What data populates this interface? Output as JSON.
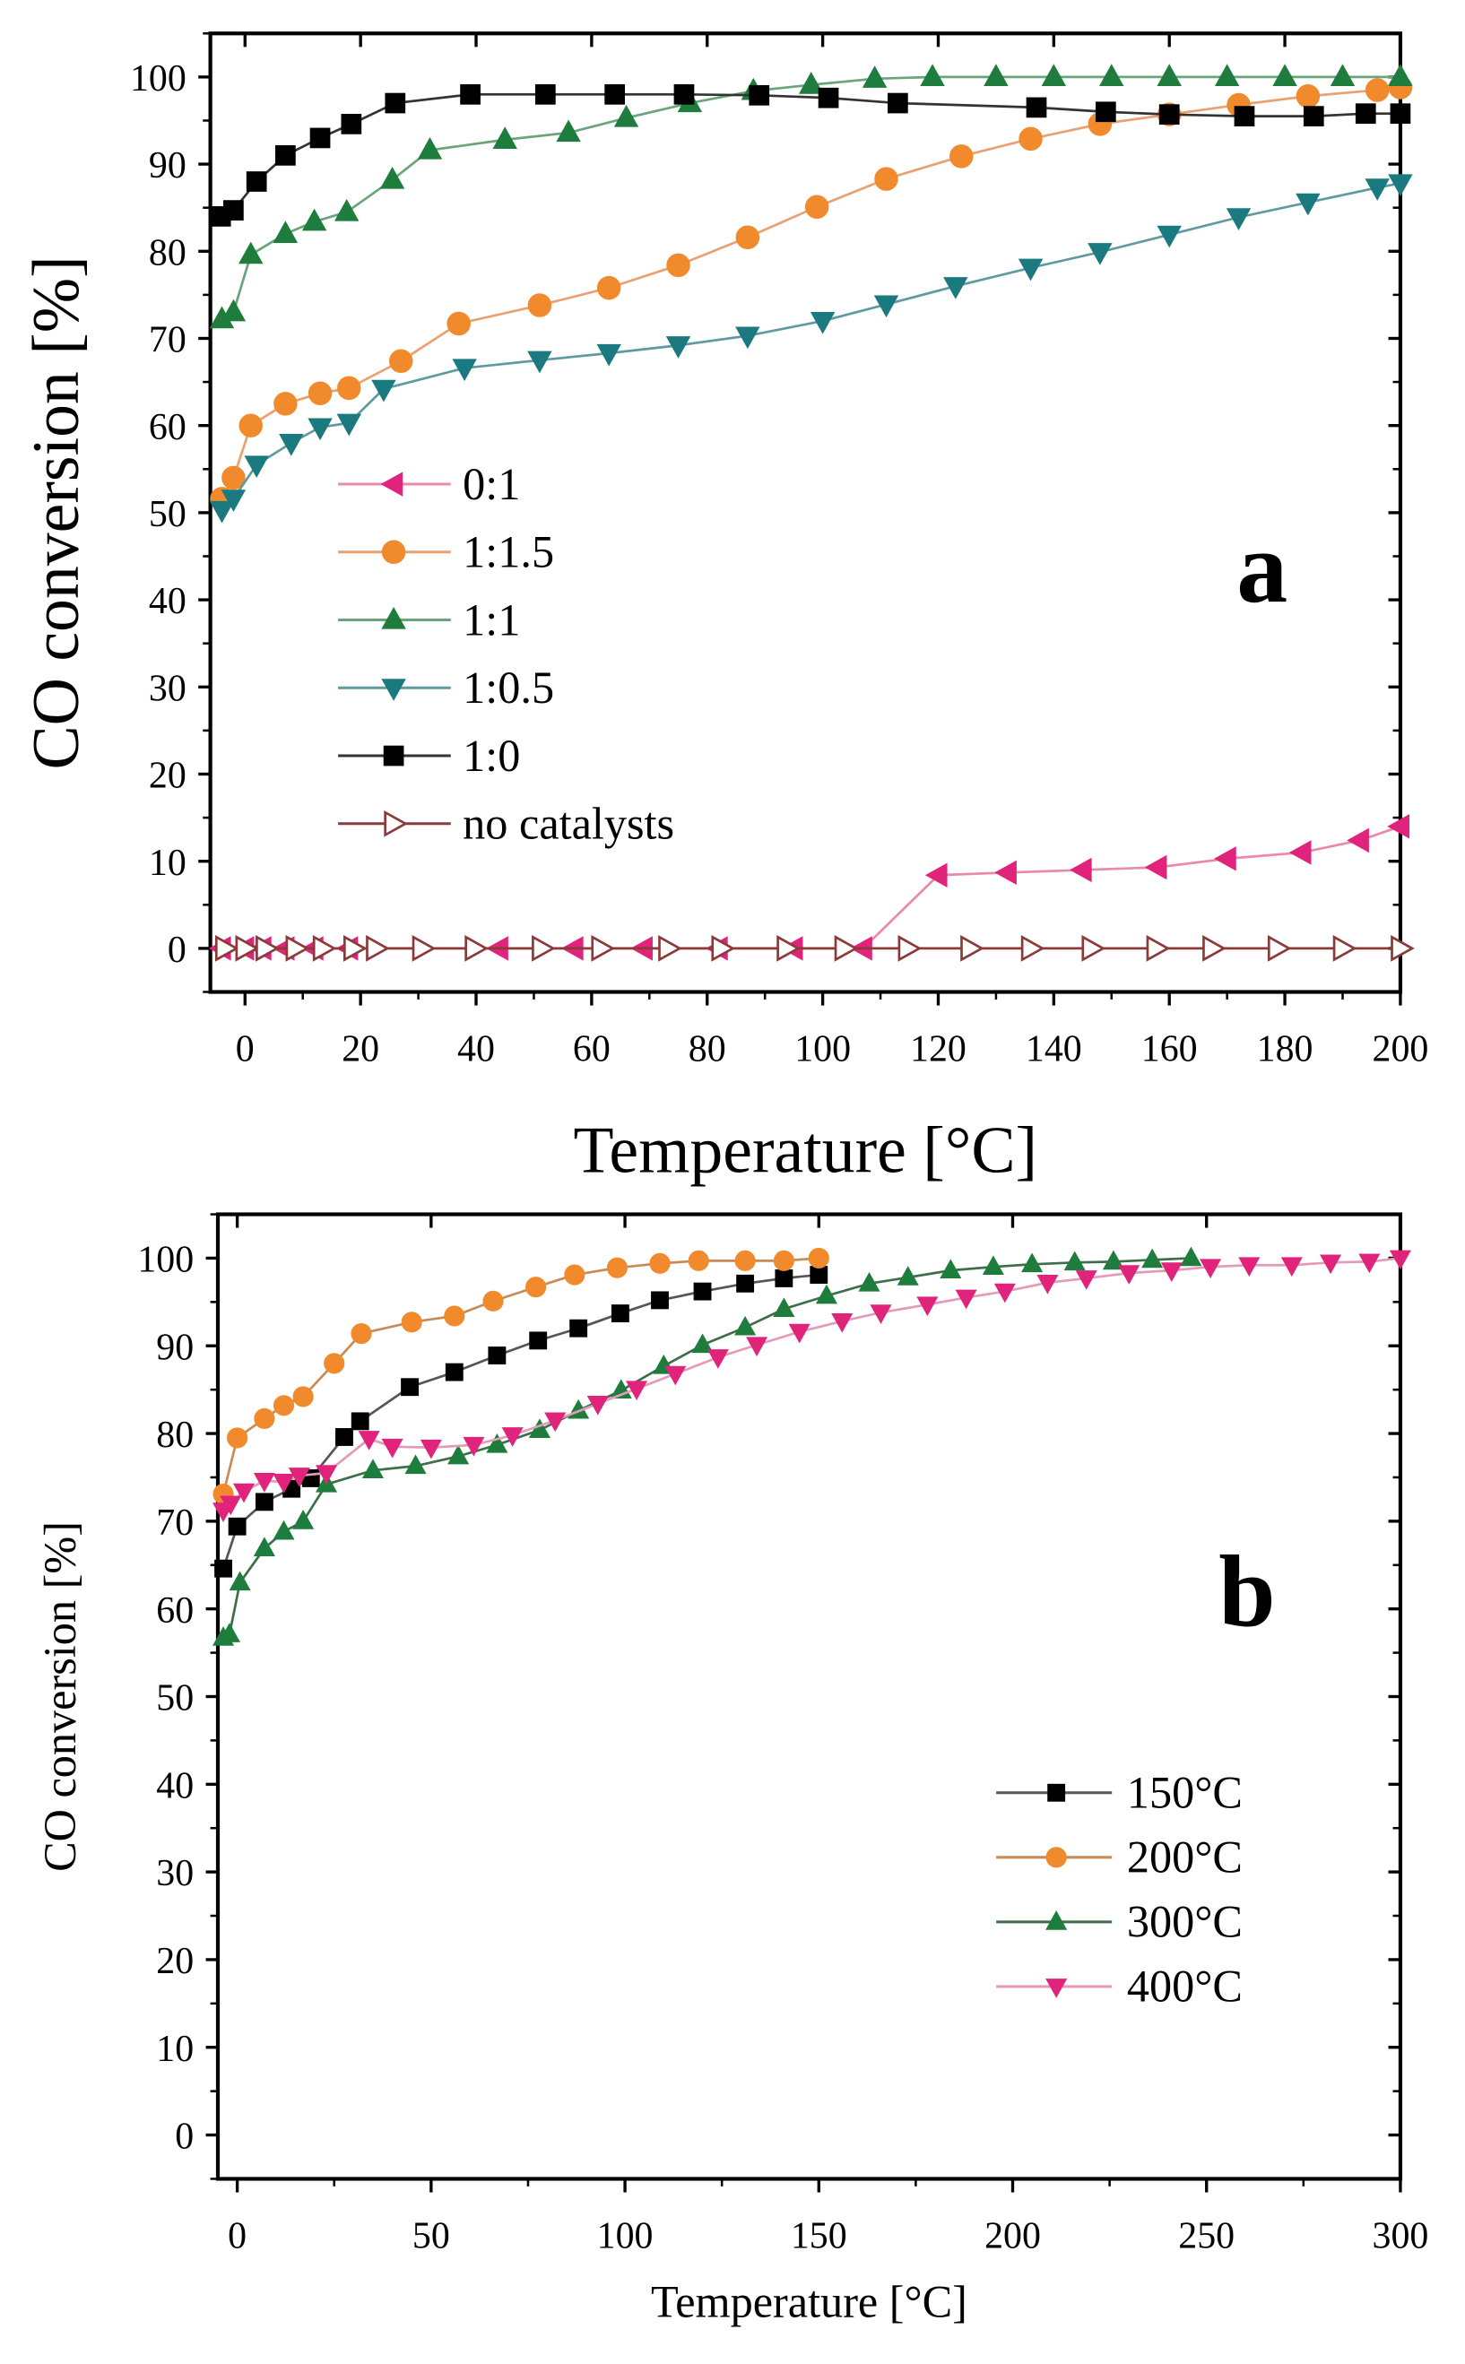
{
  "chart_data": [
    {
      "type": "line",
      "panel_label": "a",
      "xlabel": "Temperature [°C]",
      "ylabel": "CO conversion [%]",
      "xlim": [
        -6,
        200
      ],
      "ylim": [
        -5,
        105
      ],
      "xticks": [
        0,
        20,
        40,
        60,
        80,
        100,
        120,
        140,
        160,
        180,
        200
      ],
      "yticks": [
        0,
        10,
        20,
        30,
        40,
        50,
        60,
        70,
        80,
        90,
        100
      ],
      "legend_position": "center-left",
      "series": [
        {
          "name": "0:1",
          "marker": "triangle-left",
          "color": "#e0247c",
          "line": "#e88aa8",
          "filled": true,
          "x": [
            -4,
            0,
            3,
            7,
            12,
            18,
            44,
            57,
            69,
            82,
            95,
            107,
            120,
            132,
            145,
            158,
            170,
            183,
            193,
            200
          ],
          "y": [
            0,
            0,
            0,
            0,
            0,
            0,
            0,
            0,
            0,
            0,
            0,
            0,
            8.4,
            8.7,
            9,
            9.3,
            10.3,
            11,
            12.4,
            14
          ]
        },
        {
          "name": "1:1.5",
          "marker": "circle",
          "color": "#f08a2c",
          "line": "#eba070",
          "filled": true,
          "x": [
            -4,
            -2,
            1,
            7,
            13,
            18,
            27,
            37,
            51,
            63,
            75,
            87,
            99,
            111,
            124,
            136,
            148,
            160,
            172,
            184,
            196,
            200
          ],
          "y": [
            51.6,
            54,
            60,
            62.5,
            63.7,
            64.3,
            67.4,
            71.7,
            73.8,
            75.8,
            78.4,
            81.6,
            85.1,
            88.3,
            90.9,
            92.9,
            94.6,
            95.7,
            96.8,
            97.8,
            98.5,
            98.8
          ]
        },
        {
          "name": "1:1",
          "marker": "triangle-up",
          "color": "#1e7d3c",
          "line": "#6aa57a",
          "filled": true,
          "x": [
            -4,
            -2,
            1,
            7,
            12,
            17.6,
            25.5,
            32,
            45,
            56,
            66,
            77,
            88,
            98,
            109,
            119,
            130,
            140,
            150,
            160,
            170,
            180,
            190,
            200
          ],
          "y": [
            72.2,
            73,
            79.6,
            82,
            83.4,
            84.5,
            88.2,
            91.6,
            92.8,
            93.6,
            95.3,
            97,
            98.4,
            99.1,
            99.8,
            100,
            100,
            100,
            100,
            100,
            100,
            100,
            100,
            100
          ]
        },
        {
          "name": "1:0.5",
          "marker": "triangle-down",
          "color": "#1a7a80",
          "line": "#5f9aa0",
          "filled": true,
          "x": [
            -4,
            -2,
            2,
            8,
            13,
            18,
            24,
            38,
            51,
            63,
            75,
            87,
            100,
            111,
            123,
            136,
            148,
            160,
            172,
            184,
            196,
            200
          ],
          "y": [
            50.3,
            51.6,
            55.5,
            58,
            59.8,
            60.3,
            64.2,
            66.6,
            67.5,
            68.3,
            69.2,
            70.3,
            72,
            73.9,
            76,
            78.1,
            79.9,
            81.9,
            83.9,
            85.6,
            87.3,
            87.8
          ]
        },
        {
          "name": "1:0",
          "marker": "square",
          "color": "#000000",
          "line": "#333333",
          "filled": true,
          "x": [
            -4.2,
            -2,
            2,
            7,
            13,
            18.4,
            26,
            39,
            52,
            64,
            76,
            89,
            101,
            113,
            137,
            149,
            160,
            173,
            185,
            194,
            200
          ],
          "y": [
            84,
            84.7,
            88,
            91,
            93,
            94.6,
            97,
            98,
            98,
            98,
            98,
            97.9,
            97.6,
            97,
            96.5,
            96,
            95.7,
            95.5,
            95.5,
            95.8,
            95.8
          ]
        },
        {
          "name": "no catalysts",
          "marker": "triangle-right",
          "color": "#8b3a3a",
          "line": "#8b3a3a",
          "filled": false,
          "x": [
            -3.5,
            0,
            3.5,
            8.7,
            13.4,
            18.7,
            22.6,
            30.6,
            39.7,
            51.3,
            61.6,
            73.2,
            82.4,
            93.7,
            103.7,
            114.7,
            125.5,
            136,
            146.5,
            157.7,
            167.4,
            178.7,
            190,
            200
          ],
          "y": [
            0,
            0,
            0,
            0,
            0,
            0,
            0,
            0,
            0,
            0,
            0,
            0,
            0,
            0,
            0,
            0,
            0,
            0,
            0,
            0,
            0,
            0,
            0,
            0
          ]
        }
      ]
    },
    {
      "type": "line",
      "panel_label": "b",
      "xlabel": "Temperature [°C]",
      "ylabel": "CO conversion [%]",
      "xlim": [
        -5,
        300
      ],
      "ylim": [
        -5,
        105
      ],
      "xticks": [
        0,
        50,
        100,
        150,
        200,
        250,
        300
      ],
      "yticks": [
        0,
        10,
        20,
        30,
        40,
        50,
        60,
        70,
        80,
        90,
        100
      ],
      "legend_position": "bottom-right",
      "series": [
        {
          "name": "150°C",
          "marker": "square",
          "color": "#000000",
          "line": "#555555",
          "filled": true,
          "x": [
            -3.6,
            0,
            7,
            14,
            19,
            27.6,
            31.7,
            44.5,
            56,
            67,
            77.6,
            88,
            98.8,
            109,
            120,
            131,
            141,
            150
          ],
          "y": [
            64.6,
            69.4,
            72.2,
            73.7,
            74.9,
            79.6,
            81.4,
            85.3,
            87,
            88.9,
            90.6,
            92,
            93.7,
            95.2,
            96.2,
            97.1,
            97.7,
            98.1
          ]
        },
        {
          "name": "200°C",
          "marker": "circle",
          "color": "#f08a2c",
          "line": "#c98a55",
          "filled": true,
          "x": [
            -3.6,
            0,
            7,
            12,
            17,
            25,
            32,
            45,
            56,
            66,
            77,
            87,
            98,
            109,
            119,
            131,
            141,
            150
          ],
          "y": [
            73.1,
            79.5,
            81.7,
            83.2,
            84.2,
            88,
            91.4,
            92.7,
            93.4,
            95.1,
            96.7,
            98.1,
            98.9,
            99.4,
            99.7,
            99.7,
            99.7,
            100
          ]
        },
        {
          "name": "300°C",
          "marker": "triangle-up",
          "color": "#1e7d3c",
          "line": "#3d6e48",
          "filled": true,
          "x": [
            -3.6,
            -2,
            0.7,
            7,
            12,
            17,
            23,
            35,
            46,
            57,
            67,
            78,
            88,
            99,
            110,
            120,
            131,
            141,
            152,
            163,
            173,
            184,
            195,
            205,
            216,
            226,
            236,
            246
          ],
          "y": [
            56.7,
            57.1,
            63,
            66.9,
            68.8,
            70,
            74.2,
            75.8,
            76.3,
            77.4,
            78.7,
            80.4,
            82.6,
            84.9,
            87.7,
            90.1,
            92.1,
            94.2,
            95.7,
            97.1,
            97.8,
            98.6,
            99,
            99.3,
            99.5,
            99.6,
            99.8,
            100
          ]
        },
        {
          "name": "400°C",
          "marker": "triangle-down",
          "color": "#e0247c",
          "line": "#e49ab8",
          "filled": true,
          "x": [
            -3.6,
            -1.7,
            1.7,
            7,
            12,
            16,
            23,
            34,
            40,
            50,
            61,
            71,
            82,
            93,
            103,
            113,
            124,
            134,
            145,
            156,
            166,
            178,
            188,
            198,
            209,
            219,
            230,
            241,
            251,
            261,
            272,
            282,
            292,
            300
          ],
          "y": [
            71.2,
            72,
            73.4,
            74.6,
            74.5,
            75.2,
            75.5,
            79.4,
            78.5,
            78.4,
            78.7,
            79.8,
            81.5,
            83.4,
            85.1,
            86.8,
            88.7,
            90.1,
            91.6,
            92.8,
            93.8,
            94.7,
            95.5,
            96.2,
            97.2,
            97.7,
            98.3,
            98.6,
            99,
            99.2,
            99.2,
            99.5,
            99.6,
            100
          ]
        }
      ]
    }
  ]
}
